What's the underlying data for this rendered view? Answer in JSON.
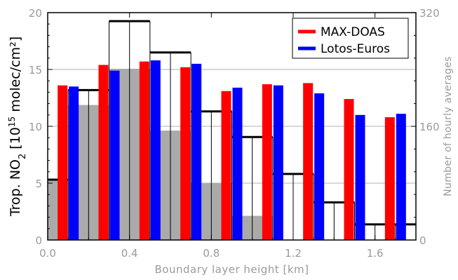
{
  "chart_data": {
    "type": "bar",
    "x_tick_labels": [
      "0.0",
      "0.4",
      "0.8",
      "1.2",
      "1.6"
    ],
    "x_ticks": [
      0.0,
      0.4,
      0.8,
      1.2,
      1.6
    ],
    "xlim": [
      0.0,
      1.8
    ],
    "xlabel": "Boundary layer height [km]",
    "ylabel_left_prefix": "Trop. NO",
    "ylabel_left_sub": "2",
    "ylabel_left_mid": " [10",
    "ylabel_left_sup": "15",
    "ylabel_left_suffix": " molec/cm²]",
    "ylim_left": [
      0,
      20
    ],
    "y_ticks_left": [
      0,
      5,
      10,
      15,
      20
    ],
    "y_tick_labels_left": [
      "0",
      "5",
      "10",
      "15",
      "20"
    ],
    "ylabel_right": "Number of hourly averages",
    "ylim_right": [
      0,
      320
    ],
    "y_ticks_right": [
      0,
      160,
      320
    ],
    "y_tick_labels_right": [
      "0",
      "160",
      "320"
    ],
    "grid": true,
    "legend_position": "top-right",
    "bins": [
      0.0,
      0.1,
      0.2,
      0.3,
      0.4,
      0.5,
      0.6,
      0.7,
      0.8,
      0.9,
      1.0,
      1.1,
      1.2,
      1.3,
      1.4,
      1.5,
      1.6,
      1.7,
      1.8
    ],
    "series": [
      {
        "name": "MAX-DOAS",
        "color": "#ff0000",
        "x": [
          0.1,
          0.3,
          0.5,
          0.7,
          0.9,
          1.1,
          1.3,
          1.5,
          1.7
        ],
        "values": [
          13.6,
          15.4,
          15.7,
          15.2,
          13.1,
          13.7,
          13.8,
          12.4,
          10.8
        ]
      },
      {
        "name": "Lotos-Euros",
        "color": "#0000ff",
        "x": [
          0.1,
          0.3,
          0.5,
          0.7,
          0.9,
          1.1,
          1.3,
          1.5,
          1.7
        ],
        "values": [
          13.5,
          14.9,
          15.8,
          15.5,
          13.4,
          13.6,
          12.9,
          11.0,
          11.1
        ]
      }
    ],
    "hourly_counts_gray": {
      "color": "#aaaaaa",
      "values": [
        85,
        190,
        190,
        241,
        241,
        154,
        154,
        80,
        80,
        34,
        34,
        0,
        0,
        0,
        0,
        0,
        0,
        0
      ]
    },
    "hourly_counts_outline": {
      "color": "#000000",
      "values": [
        85,
        211,
        211,
        308,
        308,
        264,
        264,
        181,
        181,
        145,
        145,
        93,
        93,
        53,
        53,
        22,
        22,
        22
      ]
    }
  }
}
